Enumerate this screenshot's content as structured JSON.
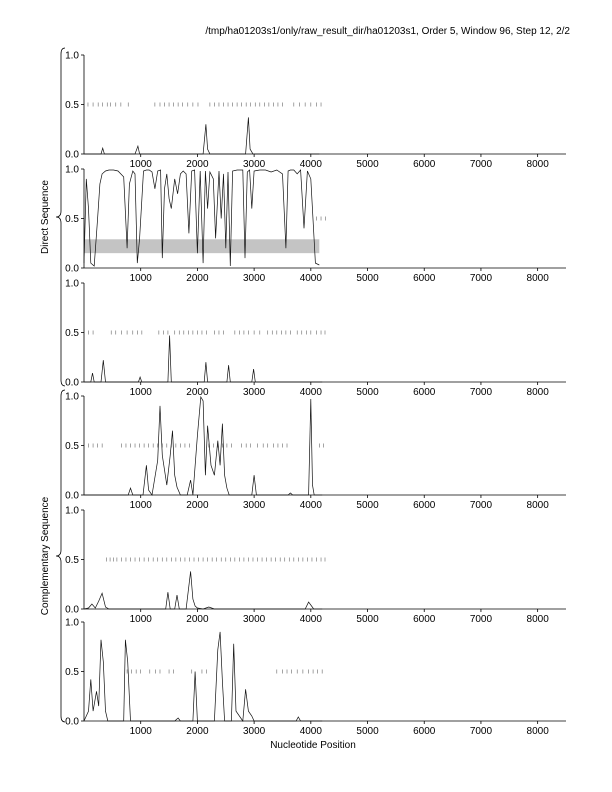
{
  "header": "/tmp/ha01203s1/only/raw_result_dir/ha01203s1, Order 5, Window 96, Step 12, 2/2",
  "groups": [
    {
      "label": "Direct Sequence",
      "panels": [
        0,
        1,
        2
      ]
    },
    {
      "label": "Complementary Sequence",
      "panels": [
        3,
        4,
        5
      ]
    }
  ],
  "chart_data": {
    "type": "line",
    "xlabel": "Nucleotide Position",
    "xlim": [
      0,
      8500
    ],
    "x_ticks": [
      1000,
      2000,
      3000,
      4000,
      5000,
      6000,
      7000,
      8000
    ],
    "y_ticks": [
      "0.0",
      "0.5",
      "1.0"
    ],
    "ylim": [
      0,
      1
    ],
    "panels": [
      {
        "id": "direct-1",
        "series": [
          {
            "x": [
              0,
              300,
              330,
              360,
              900,
              950,
              980,
              2100,
              2150,
              2180,
              2220,
              2850,
              2900,
              2930,
              2980,
              4150
            ],
            "y": [
              0,
              0,
              0.06,
              0,
              0,
              0.08,
              0,
              0,
              0.3,
              0.05,
              0,
              0,
              0.37,
              0.05,
              0,
              0
            ]
          }
        ],
        "ticks_y": 0.5,
        "tick_positions": [
          70,
          160,
          250,
          330,
          410,
          470,
          560,
          650,
          780,
          1250,
          1340,
          1420,
          1500,
          1580,
          1660,
          1740,
          1830,
          1920,
          2010,
          2220,
          2300,
          2380,
          2460,
          2540,
          2620,
          2700,
          2780,
          2860,
          2940,
          3020,
          3100,
          3180,
          3260,
          3340,
          3420,
          3500,
          3700,
          3800,
          3900,
          4000,
          4100,
          4180
        ]
      },
      {
        "id": "direct-2",
        "band": {
          "x0": 0,
          "x1": 4150,
          "y0": 0.15,
          "y1": 0.29
        },
        "series": [
          {
            "x": [
              0,
              40,
              80,
              120,
              180,
              240,
              280,
              320,
              380,
              440,
              520,
              600,
              700,
              760,
              800,
              860,
              900,
              940,
              980,
              1050,
              1100,
              1150,
              1200,
              1250,
              1300,
              1350,
              1380,
              1420,
              1460,
              1500,
              1540,
              1600,
              1650,
              1700,
              1750,
              1800,
              1850,
              1900,
              1950,
              2000,
              2050,
              2100,
              2140,
              2180,
              2220,
              2280,
              2320,
              2380,
              2420,
              2460,
              2500,
              2540,
              2580,
              2620,
              2700,
              2800,
              2840,
              2880,
              2920,
              2960,
              3000,
              3100,
              3200,
              3300,
              3400,
              3500,
              3560,
              3600,
              3640,
              3700,
              3760,
              3820,
              3880,
              3940,
              4000,
              4080,
              4150
            ],
            "y": [
              0.05,
              0.9,
              0.6,
              0.05,
              0.02,
              0.5,
              0.85,
              0.95,
              0.98,
              0.99,
              0.99,
              0.98,
              0.92,
              0.2,
              0.85,
              0.98,
              0.95,
              0.05,
              0.3,
              0.98,
              0.99,
              0.99,
              0.97,
              0.8,
              0.98,
              0.99,
              0.1,
              0.8,
              0.95,
              0.7,
              0.6,
              0.9,
              0.75,
              0.95,
              0.98,
              0.95,
              0.35,
              0.98,
              0.99,
              0.15,
              0.98,
              0.05,
              0.98,
              0.6,
              0.97,
              0.9,
              0.3,
              0.98,
              0.5,
              0.95,
              0.2,
              0.97,
              0.02,
              0.98,
              0.99,
              0.99,
              0.1,
              0.97,
              0.99,
              0.6,
              0.98,
              0.99,
              0.99,
              0.97,
              0.99,
              0.95,
              0.2,
              0.98,
              0.99,
              0.99,
              0.95,
              0.99,
              0.4,
              0.98,
              0.9,
              0.05,
              0.03
            ]
          }
        ],
        "ticks_y": 0.5,
        "tick_positions": [
          4100,
          4180,
          4260
        ]
      },
      {
        "id": "direct-3",
        "series": [
          {
            "x": [
              0,
              120,
              150,
              180,
              300,
              340,
              380,
              960,
              990,
              1020,
              1480,
              1510,
              1540,
              2120,
              2150,
              2180,
              2520,
              2550,
              2580,
              2960,
              2990,
              3020,
              4200
            ],
            "y": [
              0,
              0,
              0.09,
              0,
              0,
              0.22,
              0,
              0,
              0.05,
              0,
              0,
              0.47,
              0,
              0,
              0.2,
              0,
              0,
              0.17,
              0,
              0,
              0.13,
              0,
              0
            ]
          }
        ],
        "ticks_y": 0.5,
        "tick_positions": [
          80,
          160,
          480,
          560,
          660,
          760,
          860,
          940,
          1020,
          1320,
          1400,
          1480,
          1600,
          1680,
          1760,
          1840,
          1920,
          2000,
          2080,
          2160,
          2300,
          2380,
          2460,
          2660,
          2740,
          2820,
          2900,
          3000,
          3100,
          3240,
          3320,
          3400,
          3480,
          3560,
          3640,
          3760,
          3840,
          3920,
          4000,
          4100,
          4180,
          4250
        ]
      },
      {
        "id": "complementary-1",
        "series": [
          {
            "x": [
              0,
              780,
              820,
              860,
              1040,
              1100,
              1140,
              1200,
              1300,
              1340,
              1380,
              1460,
              1520,
              1560,
              1600,
              1640,
              1700,
              1820,
              1880,
              1920,
              2000,
              2060,
              2100,
              2140,
              2180,
              2240,
              2300,
              2360,
              2400,
              2440,
              2480,
              2520,
              2560,
              2960,
              3000,
              3040,
              3600,
              3640,
              3680,
              3960,
              4000,
              4030,
              4060,
              4200
            ],
            "y": [
              0,
              0,
              0.07,
              0,
              0,
              0.3,
              0.05,
              0,
              0.35,
              0.9,
              0.4,
              0.1,
              0.4,
              0.65,
              0.2,
              0.08,
              0,
              0,
              0.15,
              0,
              0.6,
              0.99,
              0.95,
              0.2,
              0.7,
              0.3,
              0.2,
              0.55,
              0.3,
              0.72,
              0.2,
              0.07,
              0,
              0,
              0.2,
              0,
              0,
              0.02,
              0,
              0,
              0.97,
              0.1,
              0,
              0
            ]
          }
        ],
        "ticks_y": 0.5,
        "tick_positions": [
          80,
          160,
          240,
          320,
          660,
          740,
          820,
          900,
          980,
          1060,
          1140,
          1220,
          1300,
          1380,
          1460,
          1540,
          1620,
          1700,
          1780,
          1860,
          2200,
          2280,
          2360,
          2440,
          2520,
          2600,
          2780,
          2860,
          2940,
          3060,
          3160,
          3240,
          3340,
          3420,
          3500,
          3580,
          4150,
          4220
        ]
      },
      {
        "id": "complementary-2",
        "series": [
          {
            "x": [
              0,
              80,
              140,
              200,
              260,
              320,
              380,
              440,
              1440,
              1480,
              1520,
              1600,
              1640,
              1680,
              1800,
              1880,
              1920,
              1960,
              2000,
              2100,
              2200,
              2300,
              3900,
              3960,
              4000,
              4050,
              4200
            ],
            "y": [
              0,
              0.01,
              0.05,
              0.01,
              0.08,
              0.16,
              0.02,
              0,
              0,
              0.17,
              0,
              0,
              0.14,
              0,
              0,
              0.38,
              0.1,
              0.03,
              0.01,
              0,
              0.02,
              0,
              0,
              0.07,
              0.04,
              0,
              0
            ]
          }
        ],
        "ticks_y": 0.5,
        "tick_positions": [
          400,
          460,
          520,
          580,
          660,
          740,
          820,
          900,
          980,
          1060,
          1140,
          1220,
          1300,
          1380,
          1460,
          1540,
          1620,
          1700,
          1780,
          1860,
          1940,
          2020,
          2100,
          2180,
          2260,
          2340,
          2420,
          2500,
          2580,
          2660,
          2740,
          2820,
          2900,
          2980,
          3060,
          3140,
          3220,
          3300,
          3380,
          3460,
          3540,
          3620,
          3700,
          3780,
          3860,
          3940,
          4020,
          4100,
          4180,
          4250
        ]
      },
      {
        "id": "complementary-3",
        "series": [
          {
            "x": [
              0,
              80,
              120,
              160,
              220,
              260,
              300,
              340,
              380,
              420,
              700,
              730,
              770,
              820,
              1600,
              1660,
              1700,
              1920,
              1960,
              2000,
              2300,
              2360,
              2400,
              2440,
              2480,
              2600,
              2640,
              2680,
              2800,
              2850,
              2900,
              2960,
              3000,
              3740,
              3780,
              3820,
              4200
            ],
            "y": [
              0,
              0.1,
              0.42,
              0.1,
              0.3,
              0.15,
              0.82,
              0.6,
              0.1,
              0,
              0,
              0.82,
              0.6,
              0,
              0,
              0.03,
              0,
              0,
              0.5,
              0,
              0,
              0.72,
              0.9,
              0.4,
              0,
              0,
              0.78,
              0.1,
              0,
              0.32,
              0.1,
              0.05,
              0,
              0,
              0.04,
              0,
              0
            ]
          }
        ],
        "ticks_y": 0.5,
        "tick_positions": [
          760,
          840,
          920,
          1000,
          1160,
          1260,
          1340,
          1500,
          1580,
          1900,
          2080,
          2160,
          3400,
          3500,
          3580,
          3660,
          3760,
          3860,
          3960,
          4040,
          4120,
          4200
        ]
      }
    ]
  }
}
